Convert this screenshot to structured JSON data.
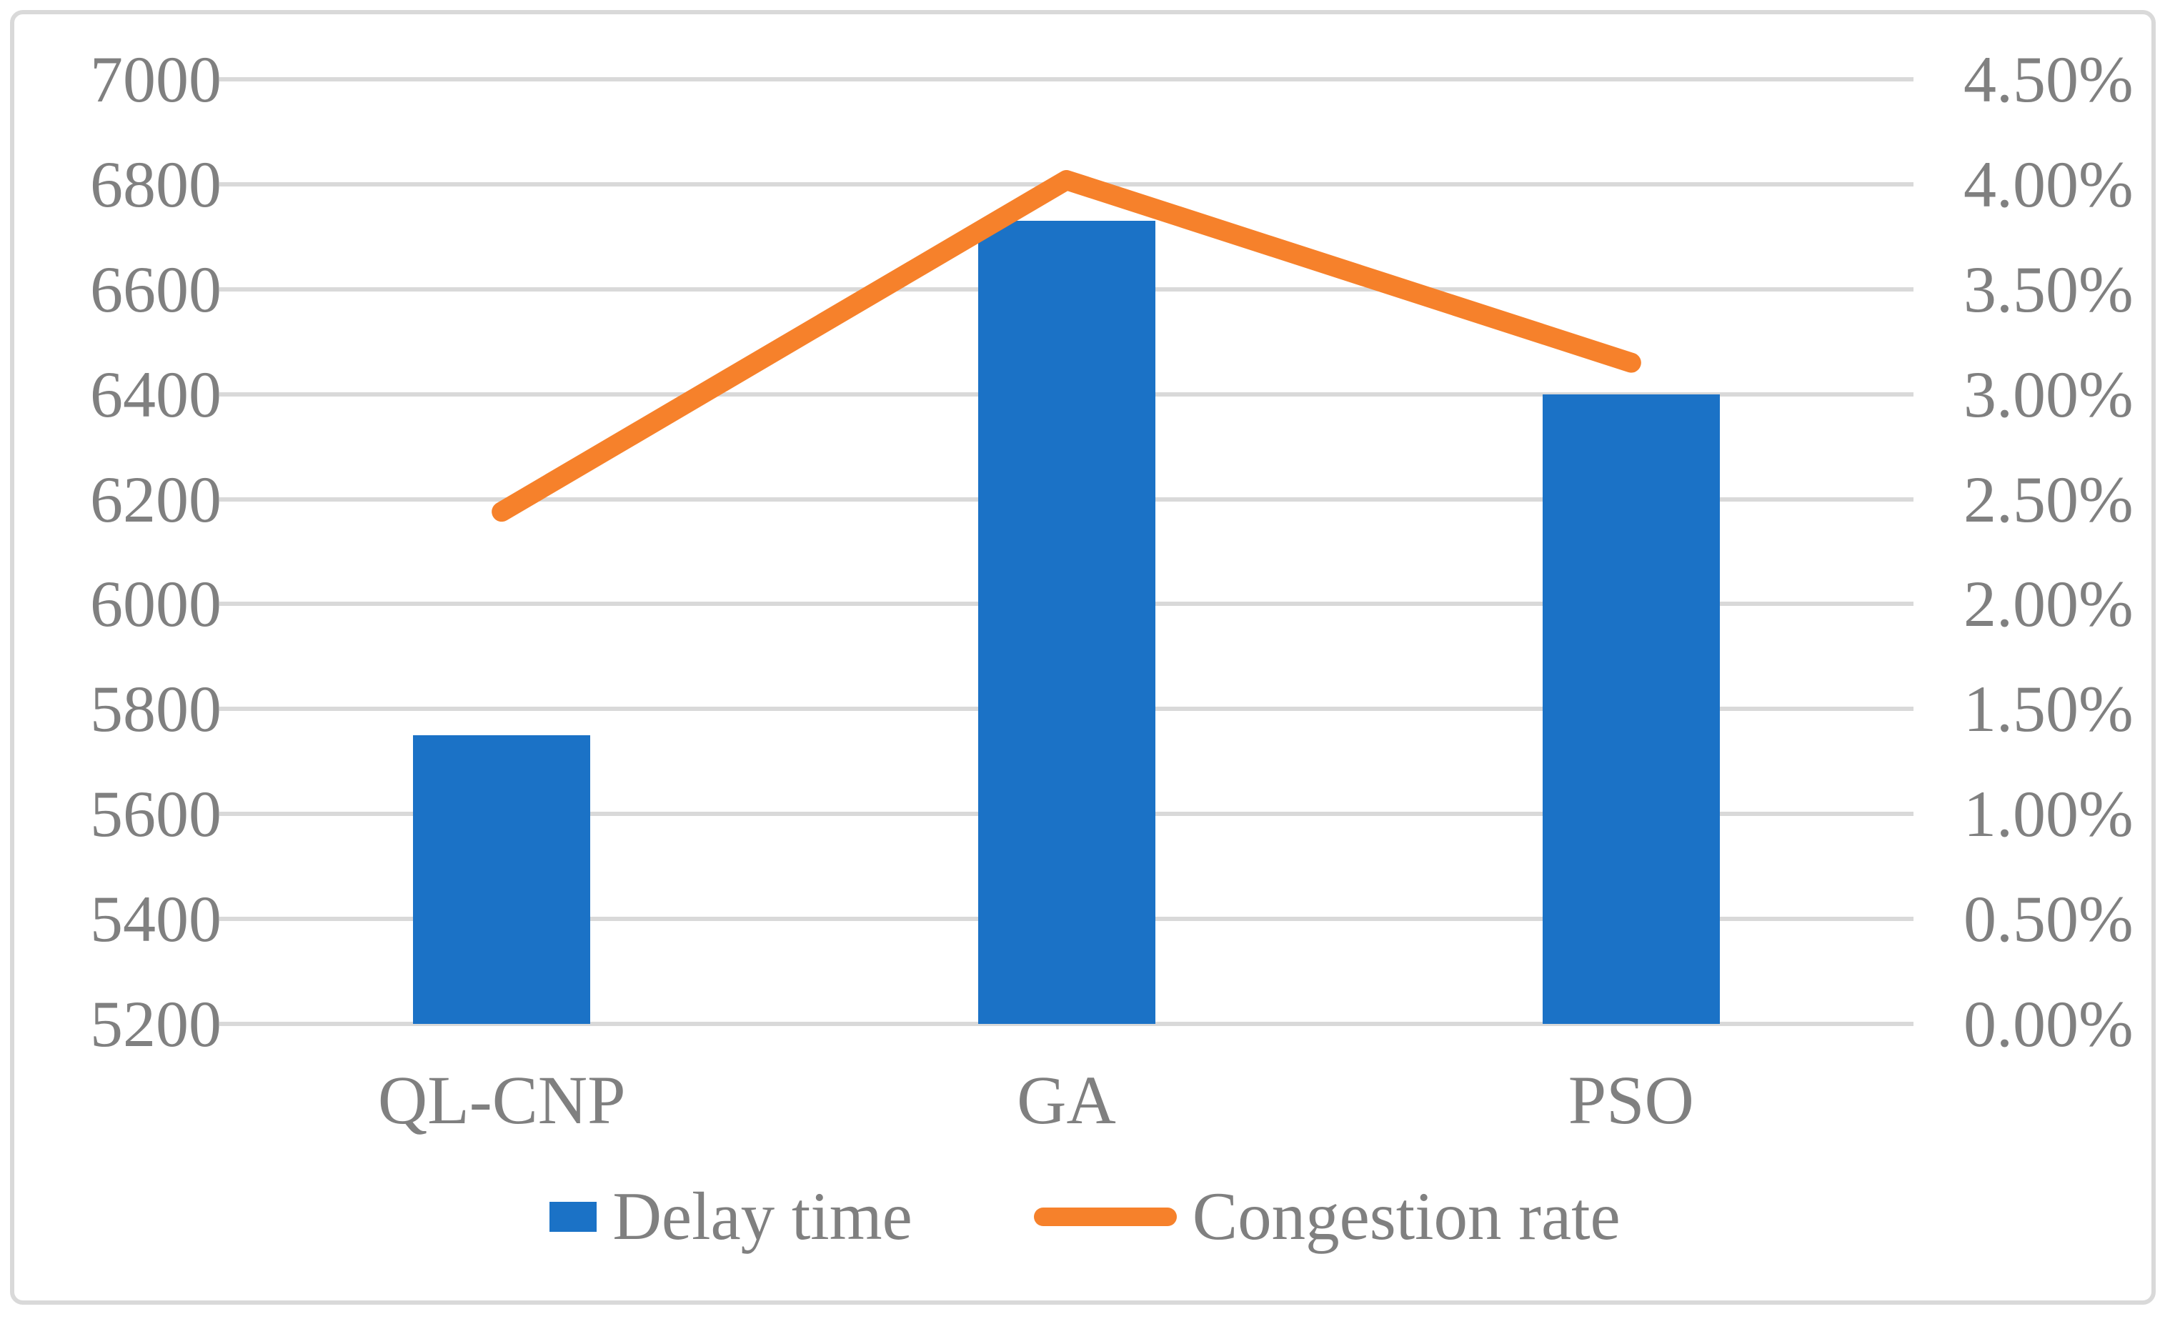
{
  "chart_data": {
    "type": "combo",
    "title": "",
    "categories": [
      "QL-CNP",
      "GA",
      "PSO"
    ],
    "series": [
      {
        "name": "Delay time",
        "type": "bar",
        "axis": "left",
        "values": [
          5750,
          6730,
          6400
        ],
        "color": "#1B72C6"
      },
      {
        "name": "Congestion rate",
        "type": "line",
        "axis": "right",
        "values": [
          2.44,
          4.02,
          3.15
        ],
        "unit": "%",
        "color": "#F6812B"
      }
    ],
    "left_axis": {
      "min": 5200,
      "max": 7000,
      "step": 200,
      "ticks": [
        "7000",
        "6800",
        "6600",
        "6400",
        "6200",
        "6000",
        "5800",
        "5600",
        "5400",
        "5200"
      ]
    },
    "right_axis": {
      "min": 0.0,
      "max": 4.5,
      "step": 0.5,
      "ticks": [
        "4.50%",
        "4.00%",
        "3.50%",
        "3.00%",
        "2.50%",
        "2.00%",
        "1.50%",
        "1.00%",
        "0.50%",
        "0.00%"
      ]
    },
    "grid": true,
    "legend_position": "bottom"
  },
  "legend": {
    "items": [
      {
        "label": "Delay time",
        "swatch": "bar",
        "color": "#1B72C6"
      },
      {
        "label": "Congestion rate",
        "swatch": "line",
        "color": "#F6812B"
      }
    ]
  },
  "colors": {
    "bar_blue": "#1B72C6",
    "line_orange": "#F6812B",
    "axis_text": "#808080",
    "gridline": "#D9D9D9",
    "frame_border": "#D9D9D9",
    "background": "#FFFFFF"
  }
}
